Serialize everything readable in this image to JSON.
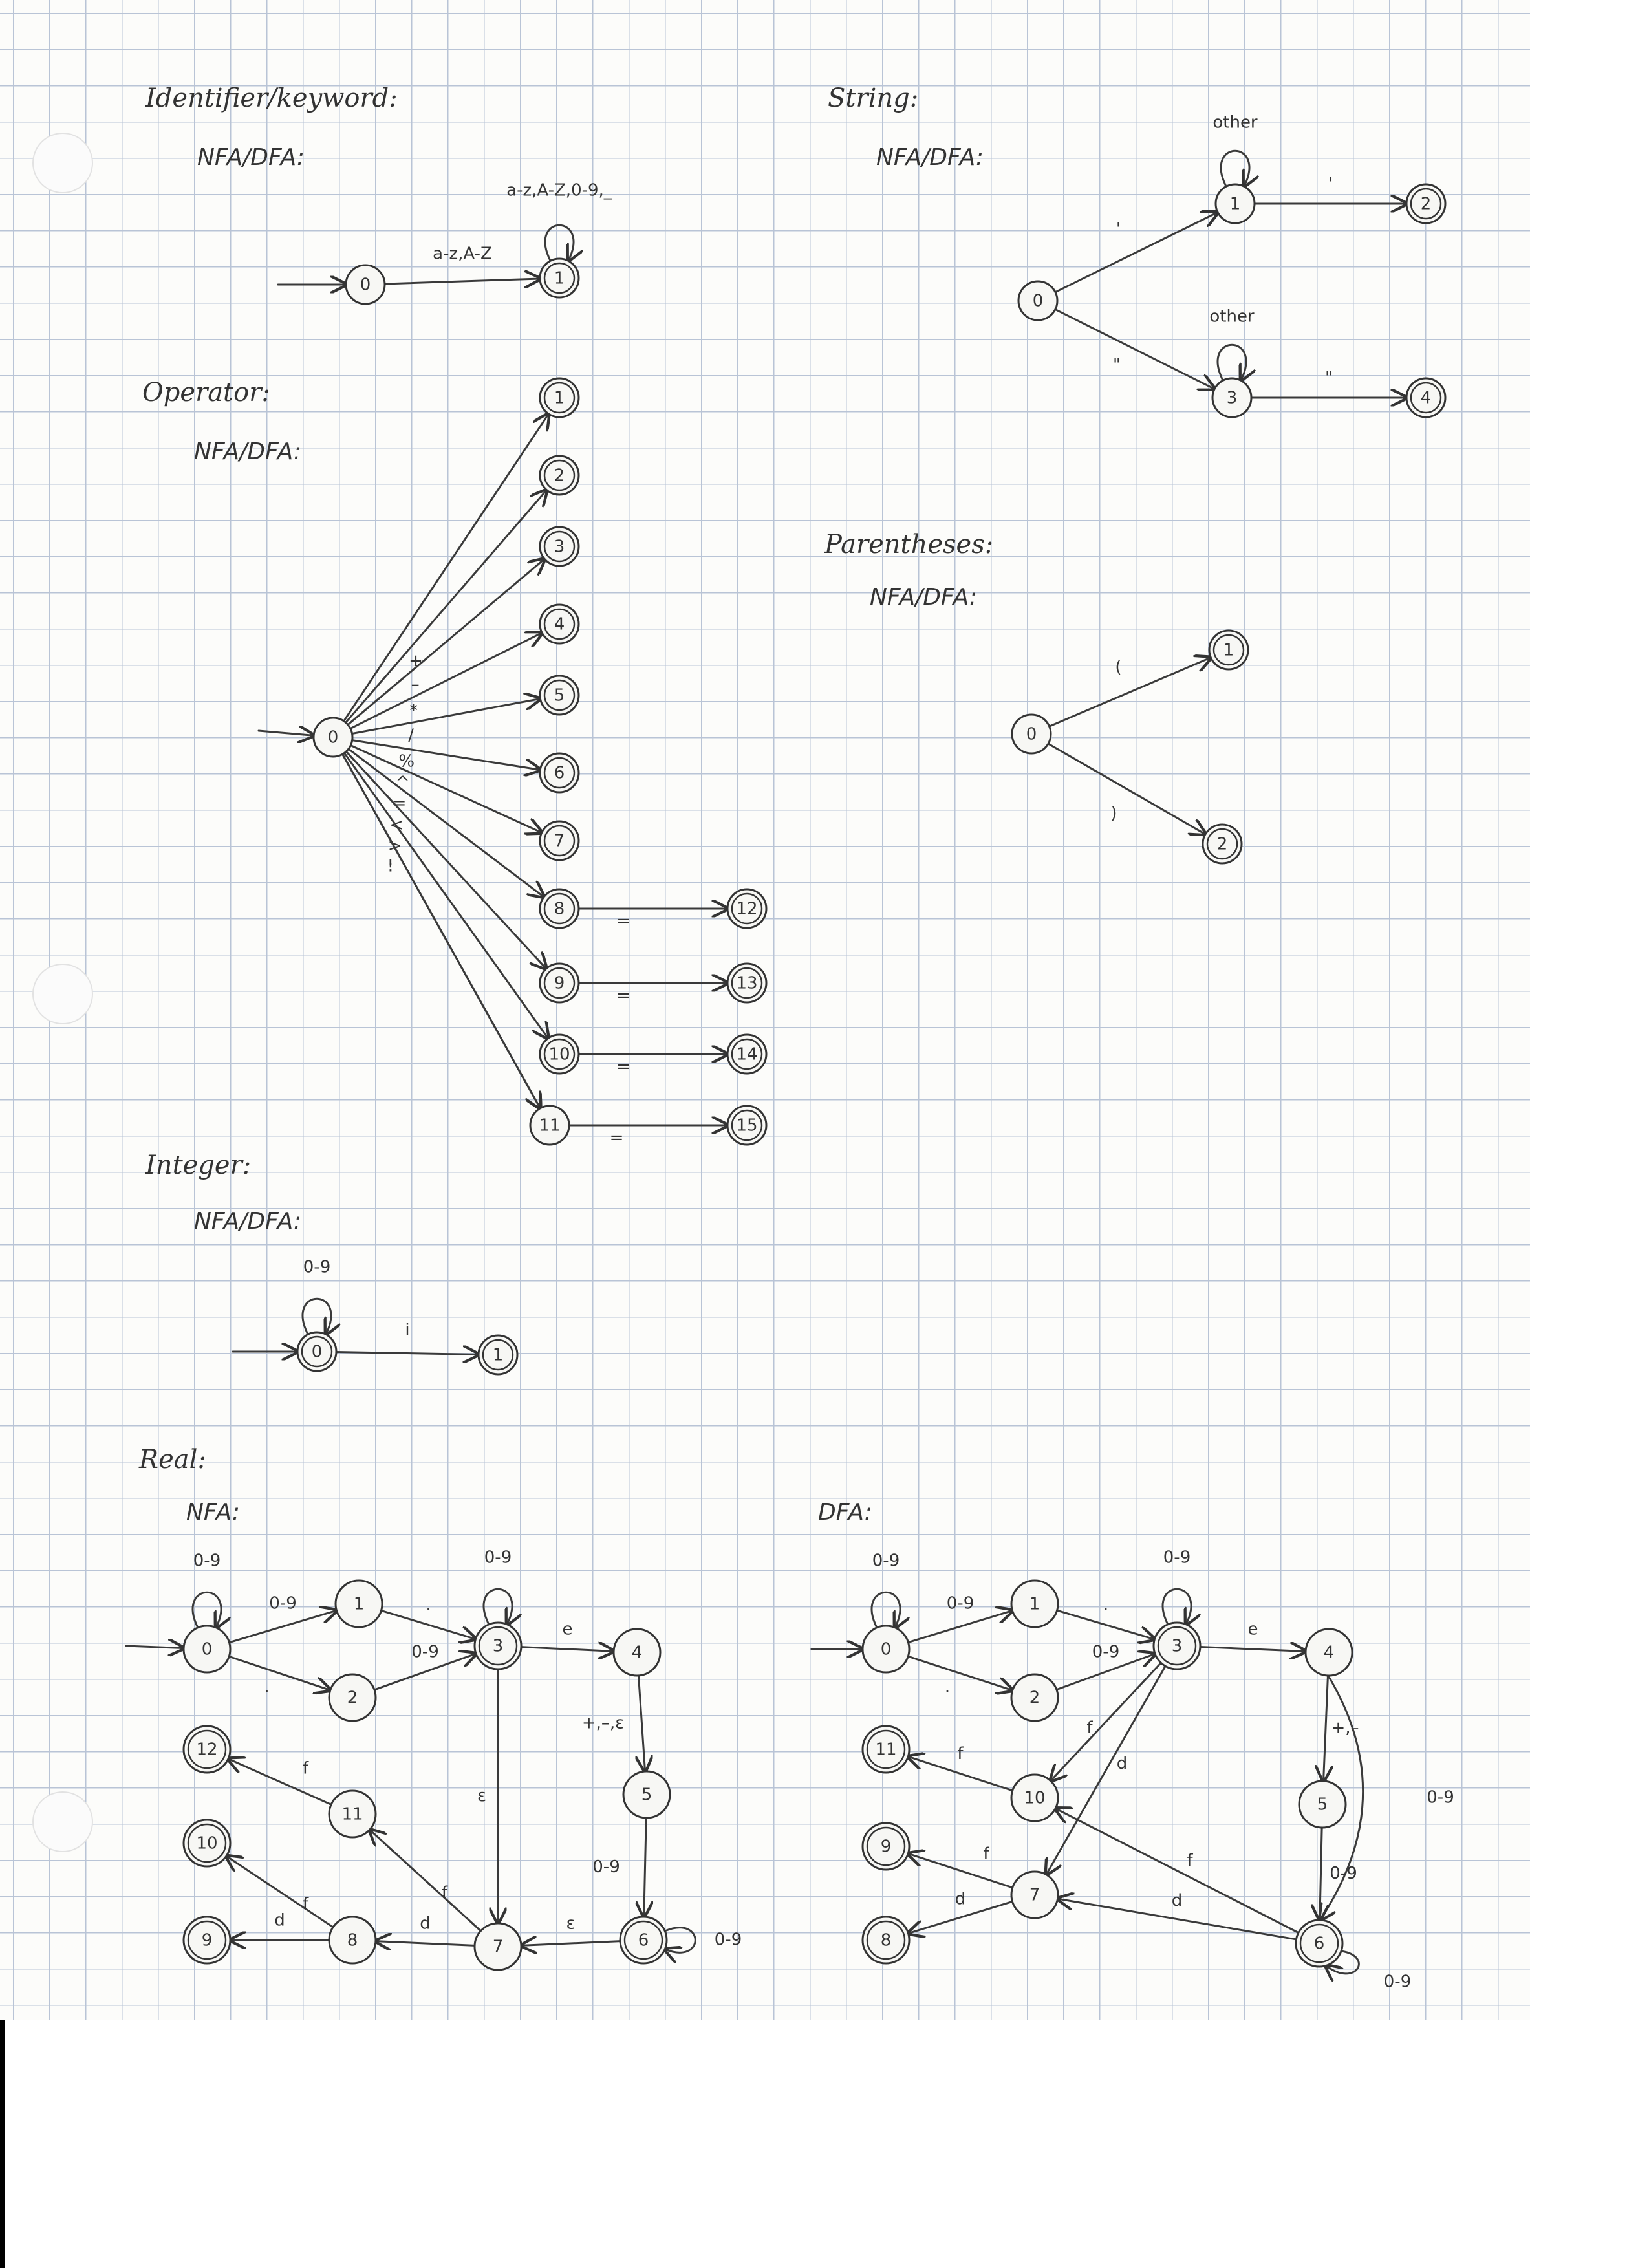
{
  "colors": {
    "paper": "#fcfcfa",
    "grid": "#b9c4d6",
    "ink": "#333333"
  },
  "sections": [
    {
      "id": "identifier",
      "title": "Identifier/keyword:",
      "subtitle": "NFA/DFA:",
      "states": [
        {
          "id": "0",
          "label": "0",
          "accepting": false,
          "start": true
        },
        {
          "id": "1",
          "label": "1",
          "accepting": true
        }
      ],
      "transitions": [
        {
          "from": "0",
          "to": "1",
          "label": "a-z,A-Z"
        },
        {
          "from": "1",
          "to": "1",
          "label": "a-z,A-Z,0-9,_"
        }
      ]
    },
    {
      "id": "string",
      "title": "String:",
      "subtitle": "NFA/DFA:",
      "states": [
        {
          "id": "0",
          "label": "0",
          "accepting": false,
          "start": false
        },
        {
          "id": "1",
          "label": "1",
          "accepting": false
        },
        {
          "id": "2",
          "label": "2",
          "accepting": true
        },
        {
          "id": "3",
          "label": "3",
          "accepting": false
        },
        {
          "id": "4",
          "label": "4",
          "accepting": true
        }
      ],
      "transitions": [
        {
          "from": "0",
          "to": "1",
          "label": "'"
        },
        {
          "from": "1",
          "to": "1",
          "label": "other"
        },
        {
          "from": "1",
          "to": "2",
          "label": "'"
        },
        {
          "from": "0",
          "to": "3",
          "label": "\""
        },
        {
          "from": "3",
          "to": "3",
          "label": "other"
        },
        {
          "from": "3",
          "to": "4",
          "label": "\""
        }
      ]
    },
    {
      "id": "operator",
      "title": "Operator:",
      "subtitle": "NFA/DFA:",
      "states": [
        {
          "id": "0",
          "label": "0",
          "accepting": false,
          "start": true
        },
        {
          "id": "1",
          "label": "1",
          "accepting": true
        },
        {
          "id": "2",
          "label": "2",
          "accepting": true
        },
        {
          "id": "3",
          "label": "3",
          "accepting": true
        },
        {
          "id": "4",
          "label": "4",
          "accepting": true
        },
        {
          "id": "5",
          "label": "5",
          "accepting": true
        },
        {
          "id": "6",
          "label": "6",
          "accepting": true
        },
        {
          "id": "7",
          "label": "7",
          "accepting": true
        },
        {
          "id": "8",
          "label": "8",
          "accepting": true
        },
        {
          "id": "9",
          "label": "9",
          "accepting": true
        },
        {
          "id": "10",
          "label": "10",
          "accepting": true
        },
        {
          "id": "11",
          "label": "11",
          "accepting": false
        },
        {
          "id": "12",
          "label": "12",
          "accepting": true
        },
        {
          "id": "13",
          "label": "13",
          "accepting": true
        },
        {
          "id": "14",
          "label": "14",
          "accepting": true
        },
        {
          "id": "15",
          "label": "15",
          "accepting": true
        }
      ],
      "transitions": [
        {
          "from": "0",
          "to": "1",
          "label": ""
        },
        {
          "from": "0",
          "to": "2",
          "label": "+"
        },
        {
          "from": "0",
          "to": "3",
          "label": "–"
        },
        {
          "from": "0",
          "to": "4",
          "label": "*"
        },
        {
          "from": "0",
          "to": "5",
          "label": "/"
        },
        {
          "from": "0",
          "to": "6",
          "label": "%"
        },
        {
          "from": "0",
          "to": "7",
          "label": "^"
        },
        {
          "from": "0",
          "to": "8",
          "label": "="
        },
        {
          "from": "0",
          "to": "9",
          "label": "<"
        },
        {
          "from": "0",
          "to": "10",
          "label": ">"
        },
        {
          "from": "0",
          "to": "11",
          "label": "!"
        },
        {
          "from": "0",
          "to": "11",
          "label": ":"
        },
        {
          "from": "8",
          "to": "12",
          "label": "="
        },
        {
          "from": "9",
          "to": "13",
          "label": "="
        },
        {
          "from": "10",
          "to": "14",
          "label": "="
        },
        {
          "from": "11",
          "to": "15",
          "label": "="
        }
      ]
    },
    {
      "id": "parentheses",
      "title": "Parentheses:",
      "subtitle": "NFA/DFA:",
      "states": [
        {
          "id": "0",
          "label": "0",
          "accepting": false
        },
        {
          "id": "1",
          "label": "1",
          "accepting": true
        },
        {
          "id": "2",
          "label": "2",
          "accepting": true
        }
      ],
      "transitions": [
        {
          "from": "0",
          "to": "1",
          "label": "("
        },
        {
          "from": "0",
          "to": "2",
          "label": ")"
        }
      ]
    },
    {
      "id": "integer",
      "title": "Integer:",
      "subtitle": "NFA/DFA:",
      "states": [
        {
          "id": "0",
          "label": "0",
          "accepting": true,
          "start": true
        },
        {
          "id": "1",
          "label": "1",
          "accepting": true
        }
      ],
      "transitions": [
        {
          "from": "0",
          "to": "0",
          "label": "0-9"
        },
        {
          "from": "0",
          "to": "1",
          "label": "i"
        }
      ]
    },
    {
      "id": "real_nfa",
      "title": "Real:",
      "subtitle": "NFA:",
      "states": [
        {
          "id": "0",
          "label": "0",
          "accepting": false,
          "start": true
        },
        {
          "id": "1",
          "label": "1",
          "accepting": false
        },
        {
          "id": "2",
          "label": "2",
          "accepting": false
        },
        {
          "id": "3",
          "label": "3",
          "accepting": true
        },
        {
          "id": "4",
          "label": "4",
          "accepting": false
        },
        {
          "id": "5",
          "label": "5",
          "accepting": false
        },
        {
          "id": "6",
          "label": "6",
          "accepting": true
        },
        {
          "id": "7",
          "label": "7",
          "accepting": false
        },
        {
          "id": "8",
          "label": "8",
          "accepting": false
        },
        {
          "id": "9",
          "label": "9",
          "accepting": true
        },
        {
          "id": "10",
          "label": "10",
          "accepting": true
        },
        {
          "id": "11",
          "label": "11",
          "accepting": false
        },
        {
          "id": "12",
          "label": "12",
          "accepting": true
        }
      ],
      "transitions": [
        {
          "from": "0",
          "to": "0",
          "label": "0-9"
        },
        {
          "from": "0",
          "to": "1",
          "label": "0-9"
        },
        {
          "from": "0",
          "to": "2",
          "label": "."
        },
        {
          "from": "1",
          "to": "3",
          "label": "."
        },
        {
          "from": "2",
          "to": "3",
          "label": "0-9"
        },
        {
          "from": "3",
          "to": "3",
          "label": "0-9"
        },
        {
          "from": "3",
          "to": "4",
          "label": "e"
        },
        {
          "from": "4",
          "to": "5",
          "label": "+,–,ε"
        },
        {
          "from": "3",
          "to": "7",
          "label": "ε"
        },
        {
          "from": "5",
          "to": "6",
          "label": "0-9"
        },
        {
          "from": "6",
          "to": "6",
          "label": "0-9"
        },
        {
          "from": "6",
          "to": "7",
          "label": "ε"
        },
        {
          "from": "7",
          "to": "8",
          "label": "d"
        },
        {
          "from": "7",
          "to": "11",
          "label": "f"
        },
        {
          "from": "8",
          "to": "9",
          "label": "d"
        },
        {
          "from": "8",
          "to": "10",
          "label": "f"
        },
        {
          "from": "11",
          "to": "12",
          "label": "f"
        }
      ]
    },
    {
      "id": "real_dfa",
      "title": "",
      "subtitle": "DFA:",
      "states": [
        {
          "id": "0",
          "label": "0",
          "accepting": false,
          "start": true
        },
        {
          "id": "1",
          "label": "1",
          "accepting": false
        },
        {
          "id": "2",
          "label": "2",
          "accepting": false
        },
        {
          "id": "3",
          "label": "3",
          "accepting": true
        },
        {
          "id": "4",
          "label": "4",
          "accepting": false
        },
        {
          "id": "5",
          "label": "5",
          "accepting": false
        },
        {
          "id": "6",
          "label": "6",
          "accepting": true
        },
        {
          "id": "7",
          "label": "7",
          "accepting": false
        },
        {
          "id": "8",
          "label": "8",
          "accepting": true
        },
        {
          "id": "9",
          "label": "9",
          "accepting": true
        },
        {
          "id": "10",
          "label": "10",
          "accepting": false
        },
        {
          "id": "11",
          "label": "11",
          "accepting": true
        }
      ],
      "transitions": [
        {
          "from": "0",
          "to": "0",
          "label": "0-9"
        },
        {
          "from": "0",
          "to": "1",
          "label": "0-9"
        },
        {
          "from": "0",
          "to": "2",
          "label": "."
        },
        {
          "from": "1",
          "to": "3",
          "label": "."
        },
        {
          "from": "2",
          "to": "3",
          "label": "0-9"
        },
        {
          "from": "3",
          "to": "3",
          "label": "0-9"
        },
        {
          "from": "3",
          "to": "4",
          "label": "e"
        },
        {
          "from": "4",
          "to": "5",
          "label": "+,–"
        },
        {
          "from": "4",
          "to": "6",
          "label": "0-9"
        },
        {
          "from": "5",
          "to": "6",
          "label": "0-9"
        },
        {
          "from": "6",
          "to": "6",
          "label": "0-9"
        },
        {
          "from": "3",
          "to": "10",
          "label": "f"
        },
        {
          "from": "3",
          "to": "7",
          "label": "d"
        },
        {
          "from": "6",
          "to": "10",
          "label": "f"
        },
        {
          "from": "6",
          "to": "7",
          "label": "d"
        },
        {
          "from": "10",
          "to": "11",
          "label": "f"
        },
        {
          "from": "7",
          "to": "9",
          "label": "f"
        },
        {
          "from": "7",
          "to": "8",
          "label": "d"
        }
      ]
    }
  ]
}
